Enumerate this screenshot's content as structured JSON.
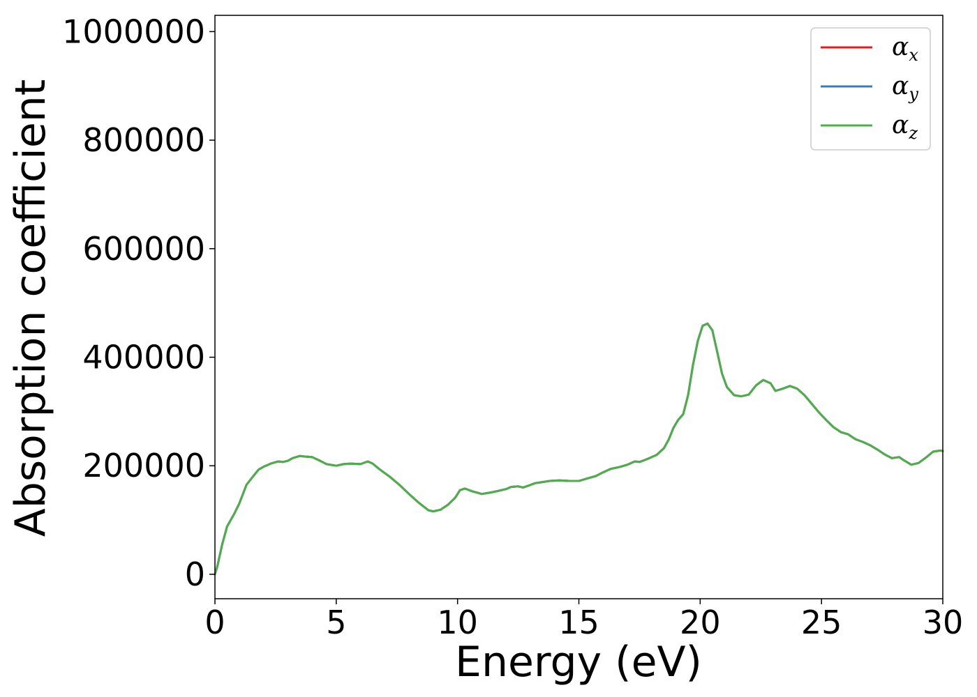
{
  "chart_data": {
    "type": "line",
    "title": "",
    "xlabel": "Energy (eV)",
    "ylabel": "Absorption coefficient",
    "xlim": [
      0,
      30
    ],
    "ylim": [
      -45000,
      1030000
    ],
    "xticks": [
      0,
      5,
      10,
      15,
      20,
      25,
      30
    ],
    "yticks": [
      0,
      200000,
      400000,
      600000,
      800000,
      1000000
    ],
    "xtick_labels": [
      "0",
      "5",
      "10",
      "15",
      "20",
      "25",
      "30"
    ],
    "ytick_labels": [
      "0",
      "200000",
      "400000",
      "600000",
      "800000",
      "1000000"
    ],
    "grid": false,
    "legend_position": "top-right",
    "x": [
      0,
      0.1,
      0.3,
      0.5,
      0.8,
      1.0,
      1.3,
      1.6,
      1.8,
      2.0,
      2.3,
      2.6,
      2.8,
      3.0,
      3.2,
      3.5,
      3.7,
      4.0,
      4.3,
      4.6,
      5.0,
      5.3,
      5.6,
      6.0,
      6.3,
      6.5,
      6.8,
      7.2,
      7.6,
      8.0,
      8.4,
      8.8,
      9.0,
      9.3,
      9.6,
      9.9,
      10.1,
      10.3,
      10.6,
      11.0,
      11.4,
      11.7,
      12.0,
      12.2,
      12.5,
      12.7,
      12.9,
      13.2,
      13.5,
      13.8,
      14.2,
      14.6,
      15.0,
      15.3,
      15.7,
      16.0,
      16.3,
      16.7,
      17.0,
      17.3,
      17.5,
      17.8,
      18.2,
      18.5,
      18.7,
      18.9,
      19.1,
      19.3,
      19.5,
      19.7,
      19.9,
      20.1,
      20.3,
      20.5,
      20.7,
      20.9,
      21.1,
      21.4,
      21.7,
      22.0,
      22.3,
      22.6,
      22.9,
      23.1,
      23.4,
      23.7,
      24.0,
      24.3,
      24.6,
      24.9,
      25.2,
      25.5,
      25.8,
      26.1,
      26.4,
      26.7,
      27.0,
      27.3,
      27.6,
      27.9,
      28.2,
      28.4,
      28.7,
      29.0,
      29.3,
      29.6,
      29.9,
      30.0
    ],
    "series": [
      {
        "name": "αx",
        "color": "#e41a1c",
        "values": [
          0,
          15000,
          55000,
          88000,
          112000,
          130000,
          165000,
          182000,
          193000,
          198000,
          204000,
          208000,
          207000,
          209000,
          214000,
          218000,
          217000,
          216000,
          210000,
          203000,
          200000,
          203000,
          204000,
          203000,
          208000,
          204000,
          193000,
          180000,
          165000,
          148000,
          132000,
          118000,
          116000,
          119000,
          128000,
          141000,
          155000,
          158000,
          153000,
          148000,
          151000,
          154000,
          157000,
          161000,
          162000,
          160000,
          163000,
          168000,
          170000,
          172000,
          173000,
          172000,
          172000,
          176000,
          181000,
          188000,
          194000,
          198000,
          202000,
          208000,
          207000,
          212000,
          220000,
          232000,
          248000,
          270000,
          285000,
          295000,
          330000,
          385000,
          430000,
          458000,
          462000,
          450000,
          410000,
          370000,
          345000,
          330000,
          328000,
          331000,
          348000,
          358000,
          352000,
          338000,
          342000,
          347000,
          342000,
          330000,
          314000,
          298000,
          284000,
          271000,
          262000,
          258000,
          249000,
          244000,
          238000,
          230000,
          221000,
          214000,
          216000,
          210000,
          202000,
          205000,
          215000,
          226000,
          228000,
          227000
        ]
      },
      {
        "name": "αy",
        "color": "#377eb8",
        "values": [
          0,
          15000,
          55000,
          88000,
          112000,
          130000,
          165000,
          182000,
          193000,
          198000,
          204000,
          208000,
          207000,
          209000,
          214000,
          218000,
          217000,
          216000,
          210000,
          203000,
          200000,
          203000,
          204000,
          203000,
          208000,
          204000,
          193000,
          180000,
          165000,
          148000,
          132000,
          118000,
          116000,
          119000,
          128000,
          141000,
          155000,
          158000,
          153000,
          148000,
          151000,
          154000,
          157000,
          161000,
          162000,
          160000,
          163000,
          168000,
          170000,
          172000,
          173000,
          172000,
          172000,
          176000,
          181000,
          188000,
          194000,
          198000,
          202000,
          208000,
          207000,
          212000,
          220000,
          232000,
          248000,
          270000,
          285000,
          295000,
          330000,
          385000,
          430000,
          458000,
          462000,
          450000,
          410000,
          370000,
          345000,
          330000,
          328000,
          331000,
          348000,
          358000,
          352000,
          338000,
          342000,
          347000,
          342000,
          330000,
          314000,
          298000,
          284000,
          271000,
          262000,
          258000,
          249000,
          244000,
          238000,
          230000,
          221000,
          214000,
          216000,
          210000,
          202000,
          205000,
          215000,
          226000,
          228000,
          227000
        ]
      },
      {
        "name": "αz",
        "color": "#4daf4a",
        "values": [
          0,
          15000,
          55000,
          88000,
          112000,
          130000,
          165000,
          182000,
          193000,
          198000,
          204000,
          208000,
          207000,
          209000,
          214000,
          218000,
          217000,
          216000,
          210000,
          203000,
          200000,
          203000,
          204000,
          203000,
          208000,
          204000,
          193000,
          180000,
          165000,
          148000,
          132000,
          118000,
          116000,
          119000,
          128000,
          141000,
          155000,
          158000,
          153000,
          148000,
          151000,
          154000,
          157000,
          161000,
          162000,
          160000,
          163000,
          168000,
          170000,
          172000,
          173000,
          172000,
          172000,
          176000,
          181000,
          188000,
          194000,
          198000,
          202000,
          208000,
          207000,
          212000,
          220000,
          232000,
          248000,
          270000,
          285000,
          295000,
          330000,
          385000,
          430000,
          458000,
          462000,
          450000,
          410000,
          370000,
          345000,
          330000,
          328000,
          331000,
          348000,
          358000,
          352000,
          338000,
          342000,
          347000,
          342000,
          330000,
          314000,
          298000,
          284000,
          271000,
          262000,
          258000,
          249000,
          244000,
          238000,
          230000,
          221000,
          214000,
          216000,
          210000,
          202000,
          205000,
          215000,
          226000,
          228000,
          227000
        ]
      }
    ],
    "legend": [
      {
        "symbol": "α",
        "subscript": "x",
        "color": "#e41a1c"
      },
      {
        "symbol": "α",
        "subscript": "y",
        "color": "#377eb8"
      },
      {
        "symbol": "α",
        "subscript": "z",
        "color": "#4daf4a"
      }
    ]
  }
}
